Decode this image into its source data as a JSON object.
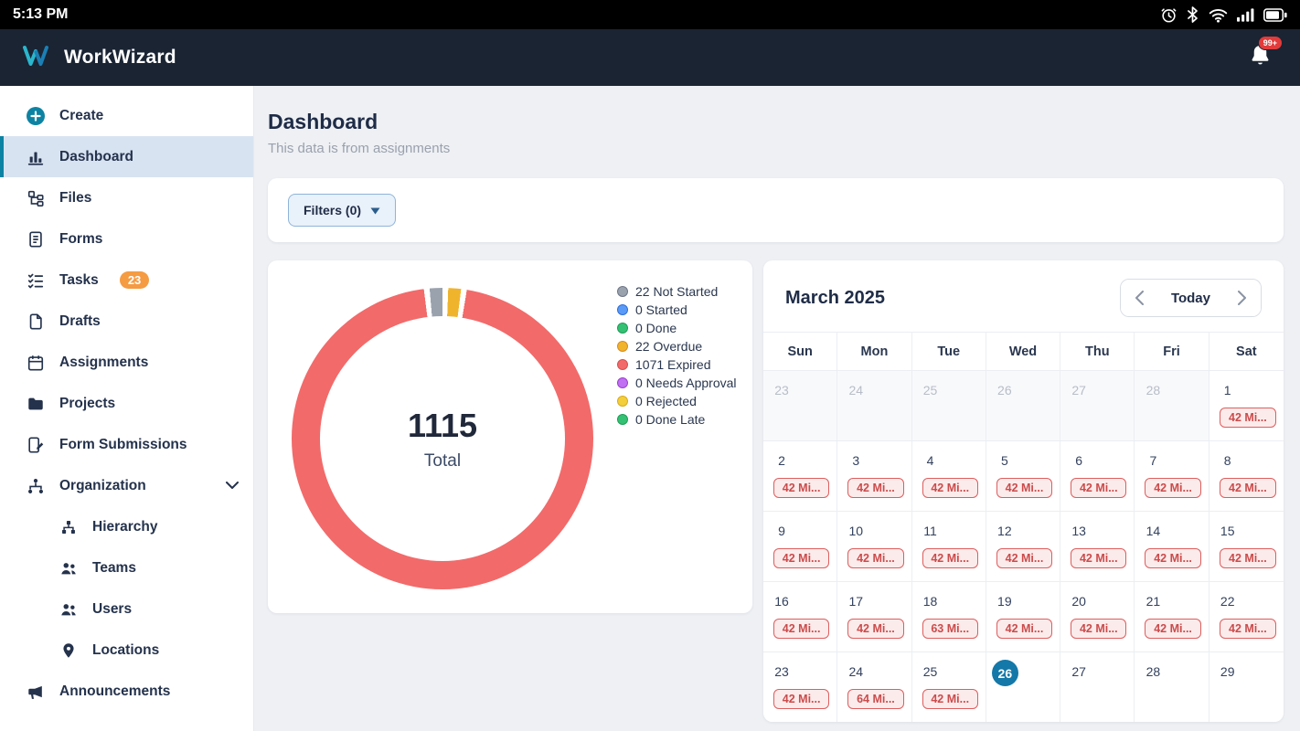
{
  "status_bar": {
    "time": "5:13 PM",
    "icons": [
      "alarm-icon",
      "bluetooth-icon",
      "wifi-icon",
      "signal-icon",
      "battery-icon"
    ]
  },
  "header": {
    "brand_bold": "Work",
    "brand_light": "Wizard",
    "notification_badge": "99+"
  },
  "sidebar": {
    "items": [
      {
        "label": "Create"
      },
      {
        "label": "Dashboard",
        "active": true
      },
      {
        "label": "Files"
      },
      {
        "label": "Forms"
      },
      {
        "label": "Tasks",
        "badge": "23"
      },
      {
        "label": "Drafts"
      },
      {
        "label": "Assignments"
      },
      {
        "label": "Projects"
      },
      {
        "label": "Form Submissions"
      },
      {
        "label": "Organization",
        "expanded": true
      },
      {
        "label": "Hierarchy",
        "indent": true
      },
      {
        "label": "Teams",
        "indent": true
      },
      {
        "label": "Users",
        "indent": true
      },
      {
        "label": "Locations",
        "indent": true
      },
      {
        "label": "Announcements"
      }
    ]
  },
  "page": {
    "title": "Dashboard",
    "subtitle": "This data is from assignments"
  },
  "filters": {
    "label": "Filters (0)"
  },
  "chart_data": {
    "type": "pie",
    "title": "Assignments status donut",
    "center_value": "1115",
    "center_label": "Total",
    "total": 1115,
    "segments": [
      {
        "label": "22 Not Started",
        "value": 22,
        "color": "#9aa2ae",
        "border": "#6e7687"
      },
      {
        "label": "0 Started",
        "value": 0,
        "color": "#5b9bf8",
        "border": "#2f6fd6"
      },
      {
        "label": "0 Done",
        "value": 0,
        "color": "#34c173",
        "border": "#1f9d57"
      },
      {
        "label": "22 Overdue",
        "value": 22,
        "color": "#f0b42c",
        "border": "#d98a1f"
      },
      {
        "label": "1071 Expired",
        "value": 1071,
        "color": "#f26a6a",
        "border": "#d84f4f"
      },
      {
        "label": "0 Needs Approval",
        "value": 0,
        "color": "#c06ef2",
        "border": "#9b3fd1"
      },
      {
        "label": "0 Rejected",
        "value": 0,
        "color": "#f2cf3b",
        "border": "#d9ab1f"
      },
      {
        "label": "0 Done Late",
        "value": 0,
        "color": "#35c173",
        "border": "#1f9d57"
      }
    ],
    "legend_position": "right"
  },
  "calendar": {
    "month": "March 2025",
    "today_label": "Today",
    "today_color": "#1478a8",
    "day_headers": [
      "Sun",
      "Mon",
      "Tue",
      "Wed",
      "Thu",
      "Fri",
      "Sat"
    ],
    "weeks": [
      [
        {
          "day": "23",
          "muted": true
        },
        {
          "day": "24",
          "muted": true
        },
        {
          "day": "25",
          "muted": true
        },
        {
          "day": "26",
          "muted": true
        },
        {
          "day": "27",
          "muted": true
        },
        {
          "day": "28",
          "muted": true
        },
        {
          "day": "1",
          "badge": "42 Mi..."
        }
      ],
      [
        {
          "day": "2",
          "badge": "42 Mi..."
        },
        {
          "day": "3",
          "badge": "42 Mi..."
        },
        {
          "day": "4",
          "badge": "42 Mi..."
        },
        {
          "day": "5",
          "badge": "42 Mi..."
        },
        {
          "day": "6",
          "badge": "42 Mi..."
        },
        {
          "day": "7",
          "badge": "42 Mi..."
        },
        {
          "day": "8",
          "badge": "42 Mi..."
        }
      ],
      [
        {
          "day": "9",
          "badge": "42 Mi..."
        },
        {
          "day": "10",
          "badge": "42 Mi..."
        },
        {
          "day": "11",
          "badge": "42 Mi..."
        },
        {
          "day": "12",
          "badge": "42 Mi..."
        },
        {
          "day": "13",
          "badge": "42 Mi..."
        },
        {
          "day": "14",
          "badge": "42 Mi..."
        },
        {
          "day": "15",
          "badge": "42 Mi..."
        }
      ],
      [
        {
          "day": "16",
          "badge": "42 Mi..."
        },
        {
          "day": "17",
          "badge": "42 Mi..."
        },
        {
          "day": "18",
          "badge": "63 Mi..."
        },
        {
          "day": "19",
          "badge": "42 Mi..."
        },
        {
          "day": "20",
          "badge": "42 Mi..."
        },
        {
          "day": "21",
          "badge": "42 Mi..."
        },
        {
          "day": "22",
          "badge": "42 Mi..."
        }
      ],
      [
        {
          "day": "23",
          "badge": "42 Mi..."
        },
        {
          "day": "24",
          "badge": "64 Mi..."
        },
        {
          "day": "25",
          "badge": "42 Mi..."
        },
        {
          "day": "26",
          "today": true
        },
        {
          "day": "27"
        },
        {
          "day": "28"
        },
        {
          "day": "29"
        }
      ]
    ]
  }
}
